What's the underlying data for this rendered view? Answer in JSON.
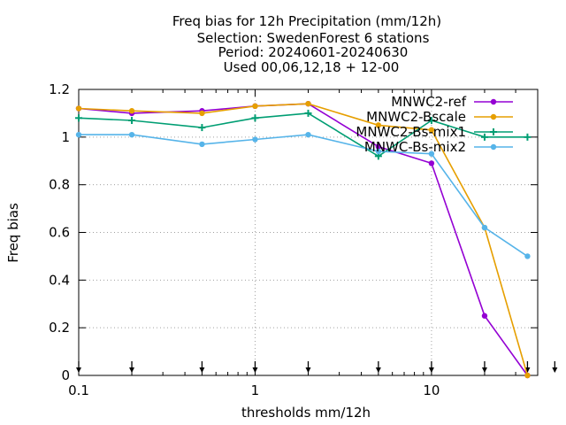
{
  "chart_data": {
    "type": "line",
    "title": [
      "Freq bias  for 12h Precipitation (mm/12h)",
      "Selection: SwedenForest      6 stations",
      "Period: 20240601-20240630",
      "Used 00,06,12,18 + 12-00"
    ],
    "xlabel": "thresholds mm/12h",
    "ylabel": "Freq bias",
    "x_scale": "log",
    "xlim": [
      0.1,
      40
    ],
    "ylim": [
      0,
      1.2
    ],
    "x_ticks": [
      0.1,
      1,
      10
    ],
    "x_tick_labels": [
      "0.1",
      "1",
      "10"
    ],
    "y_ticks": [
      0,
      0.2,
      0.4,
      0.6,
      0.8,
      1,
      1.2
    ],
    "y_tick_labels": [
      "0",
      "0.2",
      "0.4",
      "0.6",
      "0.8",
      "1",
      "1.2"
    ],
    "grid": true,
    "legend_position": "top-right",
    "x": [
      0.1,
      0.2,
      0.5,
      1,
      2,
      5,
      10,
      20,
      35
    ],
    "observation_markers_x": [
      0.1,
      0.2,
      0.5,
      1,
      2,
      5,
      10,
      20,
      35,
      50
    ],
    "series": [
      {
        "name": "MNWC2-ref",
        "color": "#9400d3",
        "marker": "circle",
        "values": [
          1.12,
          1.1,
          1.11,
          1.13,
          1.14,
          0.96,
          0.89,
          0.25,
          0.0
        ]
      },
      {
        "name": "MNWC2-Bscale",
        "color": "#e69f00",
        "marker": "circle",
        "values": [
          1.12,
          1.11,
          1.1,
          1.13,
          1.14,
          1.05,
          1.03,
          0.62,
          0.0
        ]
      },
      {
        "name": "MNWC2-Bs-mix1",
        "color": "#009e73",
        "marker": "cross",
        "values": [
          1.08,
          1.07,
          1.04,
          1.08,
          1.1,
          0.92,
          1.07,
          1.0,
          1.0
        ]
      },
      {
        "name": "MNWC-Bs-mix2",
        "color": "#56b4e9",
        "marker": "circle",
        "values": [
          1.01,
          1.01,
          0.97,
          0.99,
          1.01,
          0.94,
          0.93,
          0.62,
          0.5
        ]
      }
    ]
  }
}
